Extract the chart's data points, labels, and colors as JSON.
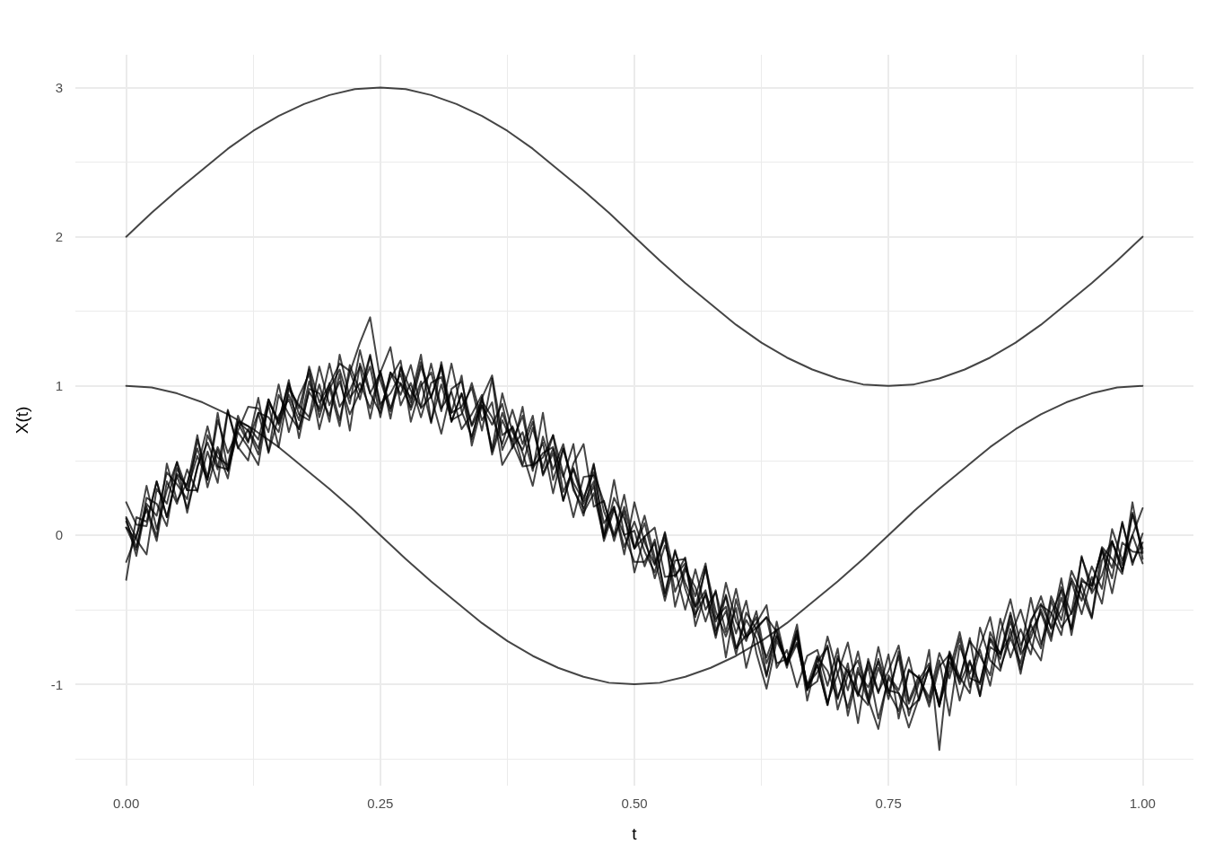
{
  "chart_data": {
    "type": "line",
    "xlabel": "t",
    "ylabel": "X(t)",
    "grid": true,
    "line_style": "solid",
    "xlim": [
      -0.05,
      1.05
    ],
    "xticks": [
      {
        "value": 0,
        "label": "0.00"
      },
      {
        "value": 0.125,
        "label": null
      },
      {
        "value": 0.25,
        "label": "0.25"
      },
      {
        "value": 0.375,
        "label": null
      },
      {
        "value": 0.5,
        "label": "0.50"
      },
      {
        "value": 0.625,
        "label": null
      },
      {
        "value": 0.75,
        "label": "0.75"
      },
      {
        "value": 0.875,
        "label": null
      },
      {
        "value": 1,
        "label": "1.00"
      }
    ],
    "ylim": [
      -1.68,
      3.22
    ],
    "yticks": [
      {
        "value": -1.5,
        "label": null
      },
      -1,
      {
        "value": -0.5,
        "label": null
      },
      0,
      {
        "value": 0.5,
        "label": null
      },
      1,
      {
        "value": 1.5,
        "label": null
      },
      2,
      {
        "value": 2.5,
        "label": null
      },
      3
    ],
    "x": [
      0,
      0.01,
      0.02,
      0.03,
      0.04,
      0.05,
      0.06,
      0.07,
      0.08,
      0.09,
      0.1,
      0.11,
      0.12,
      0.13,
      0.14,
      0.15,
      0.16,
      0.17,
      0.18,
      0.19,
      0.2,
      0.21,
      0.22,
      0.23,
      0.24,
      0.25,
      0.26,
      0.27,
      0.28,
      0.29,
      0.3,
      0.31,
      0.32,
      0.33,
      0.34,
      0.35,
      0.36,
      0.37,
      0.38,
      0.39,
      0.4,
      0.41,
      0.42,
      0.43,
      0.44,
      0.45,
      0.46,
      0.47,
      0.48,
      0.49,
      0.5,
      0.51,
      0.52,
      0.53,
      0.54,
      0.55,
      0.56,
      0.57,
      0.58,
      0.59,
      0.6,
      0.61,
      0.62,
      0.63,
      0.64,
      0.65,
      0.66,
      0.67,
      0.68,
      0.69,
      0.7,
      0.71,
      0.72,
      0.73,
      0.74,
      0.75,
      0.76,
      0.77,
      0.78,
      0.79,
      0.8,
      0.81,
      0.82,
      0.83,
      0.84,
      0.85,
      0.86,
      0.87,
      0.88,
      0.89,
      0.9,
      0.91,
      0.92,
      0.93,
      0.94,
      0.95,
      0.96,
      0.97,
      0.98,
      0.99,
      1
    ],
    "series": [
      {
        "color": "#000000",
        "x": [
          0,
          0.025,
          0.05,
          0.075,
          0.1,
          0.125,
          0.15,
          0.175,
          0.2,
          0.225,
          0.25,
          0.275,
          0.3,
          0.325,
          0.35,
          0.375,
          0.4,
          0.425,
          0.45,
          0.475,
          0.5,
          0.525,
          0.55,
          0.575,
          0.6,
          0.625,
          0.65,
          0.675,
          0.7,
          0.725,
          0.75,
          0.775,
          0.8,
          0.825,
          0.85,
          0.875,
          0.9,
          0.925,
          0.95,
          0.975,
          1
        ],
        "values": [
          2,
          2.16,
          2.31,
          2.45,
          2.59,
          2.71,
          2.81,
          2.89,
          2.95,
          2.99,
          3,
          2.99,
          2.95,
          2.89,
          2.81,
          2.71,
          2.59,
          2.45,
          2.31,
          2.16,
          2,
          1.84,
          1.69,
          1.55,
          1.41,
          1.29,
          1.19,
          1.11,
          1.05,
          1.01,
          1,
          1.01,
          1.05,
          1.11,
          1.19,
          1.29,
          1.41,
          1.55,
          1.69,
          1.84,
          2
        ]
      },
      {
        "color": "#000000",
        "x": [
          0,
          0.025,
          0.05,
          0.075,
          0.1,
          0.125,
          0.15,
          0.175,
          0.2,
          0.225,
          0.25,
          0.275,
          0.3,
          0.325,
          0.35,
          0.375,
          0.4,
          0.425,
          0.45,
          0.475,
          0.5,
          0.525,
          0.55,
          0.575,
          0.6,
          0.625,
          0.65,
          0.675,
          0.7,
          0.725,
          0.75,
          0.775,
          0.8,
          0.825,
          0.85,
          0.875,
          0.9,
          0.925,
          0.95,
          0.975,
          1
        ],
        "values": [
          1,
          0.99,
          0.95,
          0.89,
          0.81,
          0.71,
          0.59,
          0.45,
          0.31,
          0.16,
          0,
          -0.16,
          -0.31,
          -0.45,
          -0.59,
          -0.71,
          -0.81,
          -0.89,
          -0.95,
          -0.99,
          -1,
          -0.99,
          -0.95,
          -0.89,
          -0.81,
          -0.71,
          -0.59,
          -0.45,
          -0.31,
          -0.16,
          0,
          0.16,
          0.31,
          0.45,
          0.59,
          0.71,
          0.81,
          0.89,
          0.95,
          0.99,
          1
        ]
      },
      {
        "color": "#000000",
        "values": [
          0.12,
          -0.02,
          0.33,
          0.04,
          0.3,
          0.49,
          0.15,
          0.46,
          0.62,
          0.44,
          0.84,
          0.59,
          0.5,
          0.82,
          0.79,
          0.69,
          1,
          0.85,
          1.11,
          0.79,
          1.02,
          0.77,
          1.09,
          1.29,
          1.46,
          1.04,
          0.83,
          1.12,
          0.89,
          1.16,
          0.93,
          0.68,
          0.98,
          1.03,
          0.73,
          0.87,
          0.58,
          0.95,
          0.69,
          0.57,
          0.76,
          0.41,
          0.58,
          0.39,
          0.61,
          0.15,
          0.28,
          -0.02,
          0.25,
          0.11,
          -0.09,
          0.08,
          -0.19,
          0.01,
          -0.48,
          -0.23,
          -0.35,
          -0.58,
          -0.37,
          -0.82,
          -0.43,
          -0.69,
          -0.59,
          -0.47,
          -0.89,
          -0.77,
          -1.02,
          -0.81,
          -0.77,
          -1.01,
          -0.76,
          -1.21,
          -0.92,
          -1.02,
          -0.85,
          -1.1,
          -0.78,
          -1.13,
          -0.97,
          -0.86,
          -1.15,
          -0.85,
          -0.96,
          -0.71,
          -0.81,
          -0.94,
          -0.56,
          -0.82,
          -0.63,
          -0.8,
          -0.47,
          -0.52,
          -0.67,
          -0.29,
          -0.44,
          -0.21,
          -0.36,
          0.04,
          -0.17,
          0,
          0.18
        ]
      },
      {
        "color": "#000000",
        "values": [
          -0.18,
          0,
          0.17,
          -0.04,
          0.36,
          0.21,
          0.44,
          0.29,
          0.67,
          0.52,
          0.47,
          0.8,
          0.63,
          0.82,
          0.56,
          0.94,
          0.81,
          0.71,
          0.96,
          0.85,
          1.15,
          0.86,
          0.97,
          1.13,
          0.78,
          1.1,
          0.85,
          1.02,
          0.92,
          1.21,
          0.76,
          1.01,
          0.77,
          0.81,
          1.02,
          0.77,
          0.89,
          0.47,
          0.59,
          0.69,
          0.43,
          0.82,
          0.37,
          0.58,
          0.35,
          0.23,
          0.48,
          -0.01,
          0.19,
          -0.08,
          0.09,
          -0.11,
          -0.25,
          0.02,
          -0.28,
          -0.15,
          -0.61,
          -0.39,
          -0.58,
          -0.41,
          -0.76,
          -0.57,
          -0.69,
          -0.95,
          -0.58,
          -0.87,
          -0.73,
          -1.03,
          -0.98,
          -0.68,
          -0.93,
          -1.16,
          -0.89,
          -1.12,
          -0.83,
          -1.04,
          -1.06,
          -1.29,
          -1.09,
          -0.77,
          -1.44,
          -0.79,
          -1.11,
          -0.85,
          -1,
          -0.69,
          -0.79,
          -0.68,
          -0.5,
          -0.73,
          -0.84,
          -0.44,
          -0.62,
          -0.52,
          -0.15,
          -0.34,
          -0.1,
          -0.39,
          -0.05,
          -0.11,
          -0.12
        ]
      },
      {
        "color": "#000000",
        "values": [
          0.22,
          0.07,
          0.06,
          0.36,
          0.12,
          0.41,
          0.33,
          0.67,
          0.32,
          0.57,
          0.38,
          0.76,
          0.73,
          0.64,
          0.91,
          0.75,
          1.04,
          0.65,
          0.98,
          0.95,
          0.8,
          1.08,
          0.7,
          1.15,
          0.95,
          1.09,
          1.26,
          0.87,
          1.02,
          0.79,
          1.02,
          1.06,
          0.82,
          1.07,
          0.6,
          0.87,
          0.74,
          0.88,
          0.58,
          0.86,
          0.45,
          0.55,
          0.59,
          0.23,
          0.45,
          0.25,
          0.42,
          0.22,
          0,
          0.27,
          -0.09,
          -0.01,
          -0.29,
          -0.07,
          -0.23,
          -0.5,
          -0.23,
          -0.5,
          -0.38,
          -0.65,
          -0.36,
          -0.68,
          -0.62,
          -0.55,
          -0.65,
          -0.89,
          -0.64,
          -1.03,
          -0.85,
          -0.75,
          -1.17,
          -0.94,
          -0.84,
          -1.09,
          -0.75,
          -1.05,
          -1.18,
          -0.9,
          -0.96,
          -1.09,
          -0.79,
          -0.96,
          -0.69,
          -1.02,
          -0.77,
          -1.01,
          -0.66,
          -0.43,
          -0.74,
          -0.6,
          -0.76,
          -0.41,
          -0.57,
          -0.24,
          -0.39,
          -0.56,
          -0.17,
          -0.04,
          -0.24,
          0,
          -0.19
        ]
      },
      {
        "color": "#000000",
        "values": [
          0.05,
          -0.03,
          -0.13,
          0.31,
          0.21,
          0.49,
          0.3,
          0.3,
          0.56,
          0.35,
          0.83,
          0.58,
          0.71,
          0.58,
          0.87,
          0.59,
          0.98,
          0.87,
          0.79,
          1.13,
          0.87,
          1.03,
          0.81,
          0.96,
          1.13,
          0.79,
          1.09,
          0.94,
          1.14,
          0.85,
          0.93,
          1.12,
          0.76,
          0.95,
          0.74,
          0.92,
          0.54,
          0.77,
          0.62,
          0.46,
          0.47,
          0.62,
          0.28,
          0.58,
          0.32,
          0.13,
          0.47,
          0.16,
          -0.01,
          0.16,
          -0.25,
          -0.01,
          0.05,
          -0.28,
          -0.27,
          -0.19,
          -0.53,
          -0.4,
          -0.69,
          -0.4,
          -0.66,
          -0.44,
          -0.79,
          -1.03,
          -0.71,
          -0.85,
          -0.67,
          -1.01,
          -0.81,
          -1.12,
          -0.93,
          -0.72,
          -1.06,
          -1.14,
          -0.89,
          -1.06,
          -0.81,
          -1.21,
          -0.99,
          -0.9,
          -1.12,
          -0.8,
          -1,
          -0.84,
          -1.08,
          -0.65,
          -0.8,
          -0.52,
          -0.8,
          -0.69,
          -0.5,
          -0.68,
          -0.42,
          -0.63,
          -0.14,
          -0.39,
          -0.27,
          -0.04,
          -0.24,
          0.22,
          -0.16
        ]
      },
      {
        "color": "#000000",
        "values": [
          0.11,
          -0.14,
          0.21,
          0.13,
          0.42,
          0.34,
          0.24,
          0.64,
          0.39,
          0.59,
          0.43,
          0.76,
          0.7,
          0.54,
          0.91,
          0.74,
          0.94,
          0.77,
          1.13,
          0.89,
          1.01,
          1.15,
          1.1,
          0.91,
          1.2,
          0.85,
          1.05,
          1.17,
          0.76,
          1,
          1.09,
          0.83,
          1.15,
          0.83,
          0.66,
          0.9,
          0.79,
          0.61,
          0.84,
          0.61,
          0.8,
          0.4,
          0.55,
          0.23,
          0.48,
          0.61,
          0.19,
          0.23,
          -0.04,
          0.19,
          -0.09,
          0.13,
          -0.15,
          -0.44,
          -0.17,
          -0.16,
          -0.48,
          -0.37,
          -0.67,
          -0.32,
          -0.58,
          -0.71,
          -0.51,
          -0.86,
          -0.67,
          -0.85,
          -0.6,
          -1.04,
          -0.87,
          -1.14,
          -0.83,
          -0.92,
          -1.07,
          -0.85,
          -1.06,
          -0.8,
          -1.23,
          -0.91,
          -0.96,
          -1.12,
          -0.84,
          -1.21,
          -0.74,
          -0.93,
          -0.75,
          -0.55,
          -0.89,
          -0.69,
          -0.86,
          -0.57,
          -0.46,
          -0.62,
          -0.29,
          -0.67,
          -0.31,
          -0.34,
          -0.1,
          -0.29,
          0.09,
          -0.2,
          0.01
        ]
      },
      {
        "color": "#000000",
        "values": [
          -0.3,
          0.12,
          0.09,
          0.36,
          0.12,
          0.4,
          0.18,
          0.45,
          0.73,
          0.46,
          0.44,
          0.75,
          0.62,
          0.92,
          0.55,
          0.8,
          0.91,
          0.71,
          1.03,
          0.83,
          0.99,
          0.73,
          1.14,
          0.96,
          1.21,
          0.88,
          0.95,
          1.08,
          0.84,
          1.03,
          0.75,
          1.16,
          0.82,
          0.86,
          0.99,
          0.7,
          1.05,
          0.57,
          0.73,
          0.55,
          0.33,
          0.66,
          0.44,
          0.61,
          0.3,
          0.18,
          0.33,
          0,
          0.37,
          0,
          0.03,
          -0.21,
          -0.03,
          -0.41,
          -0.11,
          -0.32,
          -0.48,
          -0.23,
          -0.56,
          -0.48,
          -0.76,
          -0.67,
          -0.55,
          -0.94,
          -0.68,
          -0.86,
          -0.68,
          -1,
          -0.92,
          -0.74,
          -1.09,
          -0.9,
          -1.08,
          -0.88,
          -1.23,
          -0.96,
          -1.06,
          -1.17,
          -1.1,
          -0.89,
          -1.15,
          -0.78,
          -0.95,
          -1.06,
          -0.62,
          -0.84,
          -0.91,
          -0.63,
          -0.93,
          -0.59,
          -0.41,
          -0.63,
          -0.5,
          -0.31,
          -0.53,
          -0.28,
          -0.46,
          -0.05,
          -0.2,
          0.14,
          -0.11
        ]
      },
      {
        "color": "#000000",
        "values": [
          0.09,
          -0.08,
          0.19,
          -0.01,
          0.48,
          0.23,
          0.35,
          0.58,
          0.37,
          0.82,
          0.43,
          0.69,
          0.59,
          0.47,
          0.89,
          0.77,
          1.02,
          0.81,
          0.77,
          1.01,
          0.76,
          1.21,
          0.92,
          1.02,
          0.85,
          1.1,
          0.78,
          1.13,
          0.97,
          0.86,
          1.15,
          0.85,
          0.96,
          0.71,
          0.81,
          0.94,
          0.56,
          0.82,
          0.63,
          0.8,
          0.47,
          0.52,
          0.67,
          0.29,
          0.44,
          0.21,
          0.36,
          -0.04,
          0.17,
          0,
          -0.18,
          -0.18,
          -0.05,
          -0.39,
          -0.1,
          -0.36,
          -0.55,
          -0.21,
          -0.51,
          -0.68,
          -0.49,
          -0.89,
          -0.63,
          -0.55,
          -0.86,
          -0.83,
          -0.72,
          -1.04,
          -0.87,
          -1.14,
          -0.81,
          -1.04,
          -0.78,
          -1.1,
          -1.3,
          -0.94,
          -1.04,
          -0.82,
          -1.11,
          -0.88,
          -1.14,
          -0.91,
          -0.65,
          -0.96,
          -0.99,
          -0.7,
          -0.83,
          -0.54,
          -0.9,
          -0.65,
          -0.52,
          -0.71,
          -0.35,
          -0.53,
          -0.33,
          -0.55,
          -0.09,
          -0.22,
          0.08,
          -0.18,
          -0.05
        ]
      },
      {
        "color": "#000000",
        "values": [
          0.05,
          -0.1,
          0.25,
          0.21,
          0.06,
          0.45,
          0.3,
          0.53,
          0.37,
          0.77,
          0.55,
          0.7,
          0.86,
          0.85,
          0.69,
          1.01,
          0.69,
          0.93,
          1.08,
          0.71,
          0.98,
          1.11,
          0.88,
          1.24,
          0.95,
          0.82,
          1.09,
          1.01,
          0.86,
          1.13,
          0.92,
          1.14,
          0.76,
          0.95,
          0.64,
          0.92,
          1.07,
          0.67,
          0.72,
          0.47,
          0.72,
          0.45,
          0.67,
          0.41,
          0.12,
          0.39,
          0.4,
          0.08,
          0.19,
          -0.13,
          0.22,
          -0.05,
          -0.2,
          -0.02,
          -0.38,
          -0.21,
          -0.41,
          -0.19,
          -0.64,
          -0.51,
          -0.8,
          -0.52,
          -0.63,
          -0.82,
          -0.63,
          -0.87,
          -0.64,
          -1.11,
          -0.82,
          -0.91,
          -1.1,
          -0.86,
          -1.26,
          -0.83,
          -1.05,
          -0.91,
          -0.74,
          -1.11,
          -0.94,
          -1.15,
          -0.88,
          -0.8,
          -0.98,
          -0.69,
          -1.08,
          -0.75,
          -0.8,
          -0.58,
          -0.78,
          -0.42,
          -0.73,
          -0.53,
          -0.37,
          -0.63,
          -0.29,
          -0.37,
          -0.08,
          -0.16,
          -0.26,
          0.15,
          -0.09
        ]
      }
    ]
  }
}
